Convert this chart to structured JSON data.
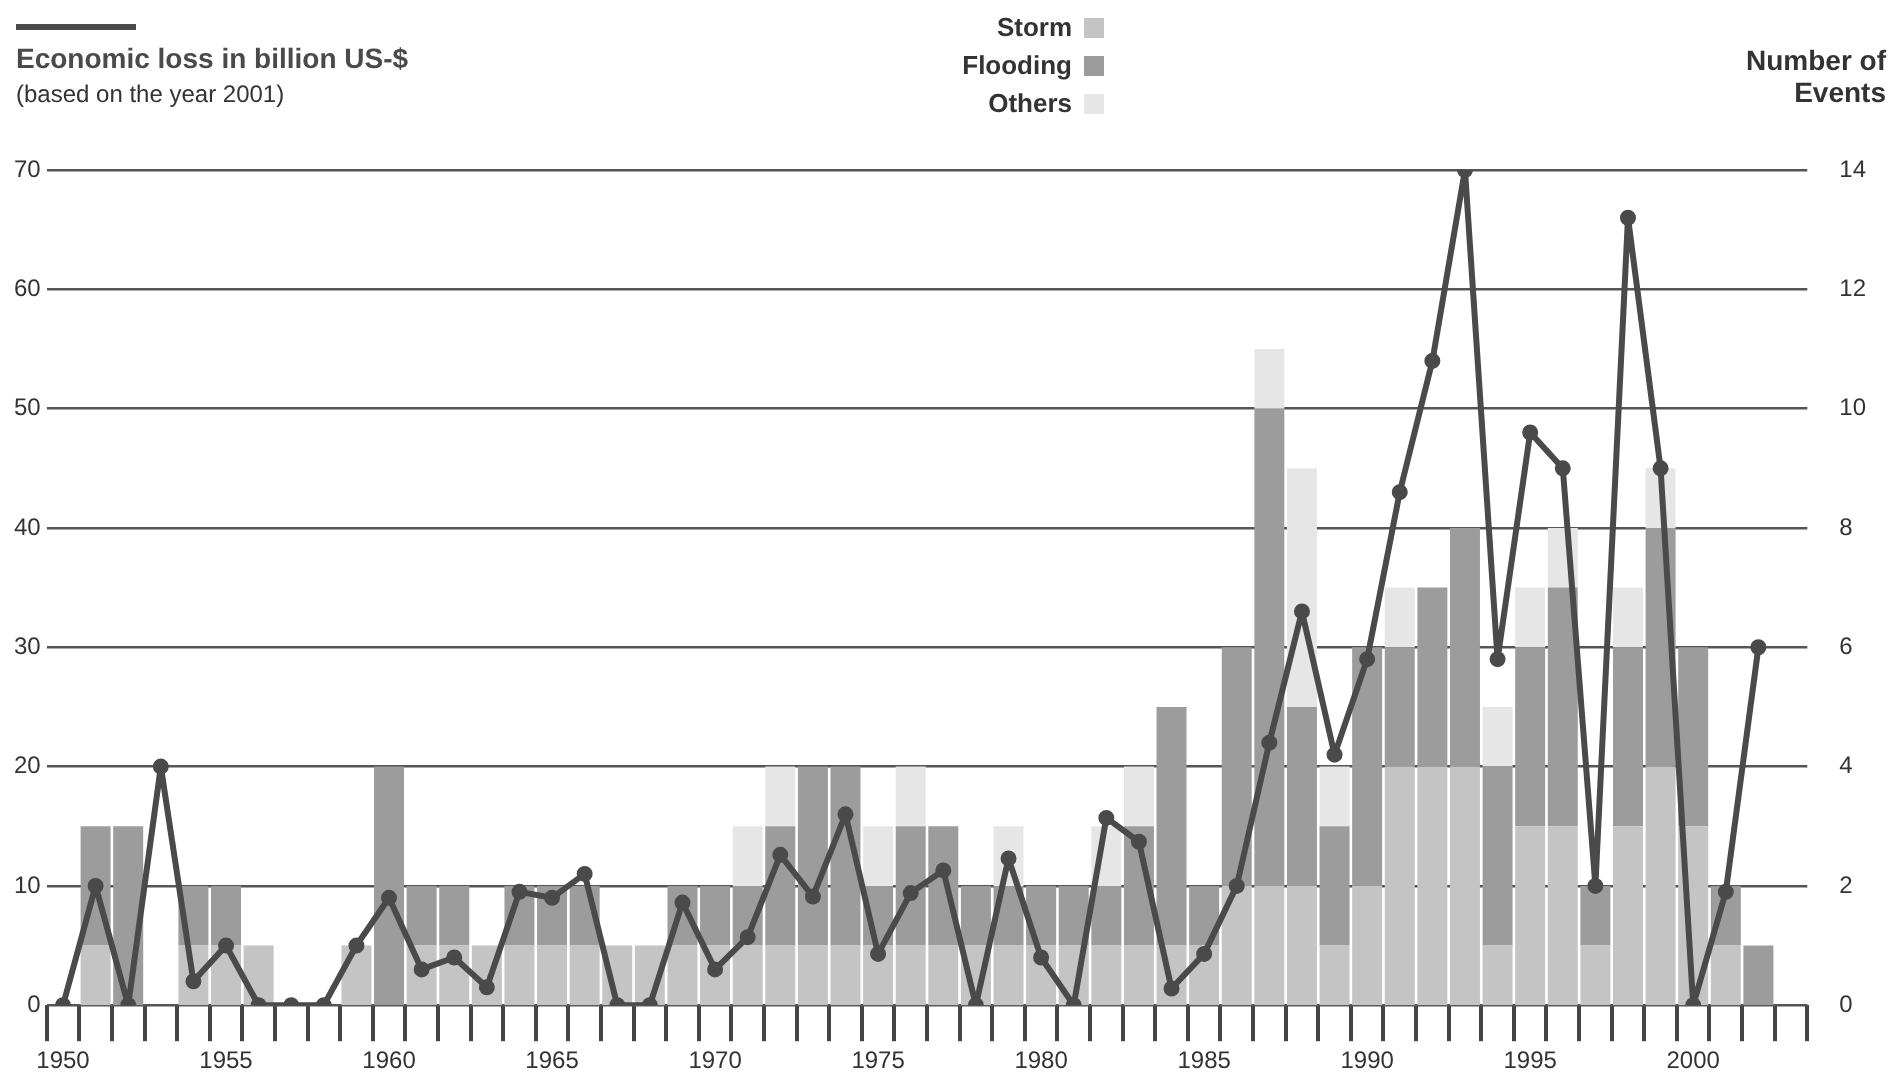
{
  "chart_data": {
    "type": "bar",
    "subtitle": "(based on the year 2001)",
    "y2label": "Number of Events",
    "stacked": true,
    "grid": "y",
    "legend": "top",
    "categories": [
      "1950",
      null,
      null,
      null,
      null,
      "1955",
      null,
      null,
      null,
      null,
      "1960",
      null,
      null,
      null,
      null,
      "1965",
      null,
      null,
      null,
      null,
      "1970",
      null,
      null,
      null,
      null,
      "1975",
      null,
      null,
      null,
      null,
      "1980",
      null,
      null,
      null,
      null,
      "1985",
      null,
      null,
      null,
      null,
      "1990",
      null,
      null,
      null,
      null,
      "1995",
      null,
      null,
      null,
      null,
      "2000",
      null,
      null,
      null
    ],
    "ylim": [
      0,
      70
    ],
    "yticks": [
      0,
      10,
      20,
      30,
      40,
      50,
      60,
      70
    ],
    "y2lim": [
      0,
      14
    ],
    "y2ticks": [
      0,
      2,
      4,
      6,
      8,
      10,
      12,
      14
    ],
    "series": [
      {
        "name": "Economic loss in billion US-$",
        "type": "line",
        "marker": "circle",
        "color": "#4a4a4a",
        "values": [
          0,
          10,
          0,
          20,
          2,
          5,
          0,
          0,
          0,
          5,
          9,
          3,
          4,
          1.5,
          9.5,
          9,
          11,
          0,
          0,
          8.6,
          3,
          5.7,
          12.6,
          9.1,
          16,
          4.3,
          9.4,
          11.3,
          0,
          12.3,
          4,
          0,
          15.7,
          13.7,
          1.4,
          4.3,
          10,
          22,
          33,
          21,
          29,
          43,
          54,
          70,
          29,
          48,
          45,
          10,
          66,
          45,
          0,
          9.5,
          30,
          null
        ]
      },
      {
        "name": "Storm",
        "axis": "y2",
        "color": "#c4c4c4",
        "values": [
          0,
          1,
          0,
          0,
          1,
          1,
          1,
          0,
          0,
          1,
          0,
          1,
          1,
          1,
          1,
          1,
          1,
          1,
          1,
          1,
          1,
          1,
          1,
          1,
          1,
          1,
          1,
          1,
          1,
          1,
          1,
          1,
          1,
          1,
          1,
          1,
          2,
          2,
          2,
          1,
          2,
          4,
          4,
          4,
          1,
          3,
          3,
          1,
          3,
          4,
          3,
          1,
          0,
          0
        ]
      },
      {
        "name": "Flooding",
        "axis": "y2",
        "color": "#9c9c9c",
        "values": [
          0,
          2,
          3,
          0,
          1,
          1,
          0,
          0,
          0,
          0,
          4,
          1,
          1,
          0,
          1,
          1,
          1,
          0,
          0,
          1,
          1,
          1,
          2,
          3,
          3,
          1,
          2,
          2,
          1,
          1,
          1,
          1,
          1,
          2,
          4,
          1,
          4,
          8,
          3,
          2,
          4,
          2,
          3,
          4,
          3,
          3,
          4,
          1,
          3,
          4,
          3,
          1,
          1,
          0
        ]
      },
      {
        "name": "Others",
        "axis": "y2",
        "color": "#e6e6e6",
        "values": [
          0,
          0,
          0,
          0,
          0,
          0,
          0,
          0,
          0,
          0,
          0,
          0,
          0,
          0,
          0,
          0,
          0,
          0,
          0,
          0,
          0,
          1,
          1,
          0,
          0,
          1,
          1,
          0,
          0,
          1,
          0,
          0,
          1,
          1,
          0,
          0,
          0,
          1,
          4,
          1,
          0,
          1,
          0,
          0,
          1,
          1,
          1,
          0,
          1,
          1,
          0,
          0,
          0,
          0
        ]
      }
    ]
  }
}
